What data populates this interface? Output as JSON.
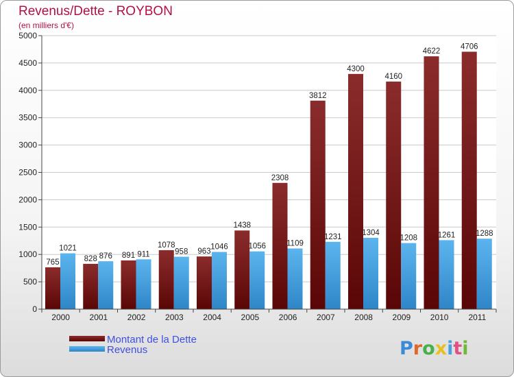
{
  "chart_data": {
    "type": "bar",
    "title": "Revenus/Dette - ROYBON",
    "subtitle": "(en milliers d'€)",
    "categories": [
      "2000",
      "2001",
      "2002",
      "2003",
      "2004",
      "2005",
      "2006",
      "2007",
      "2008",
      "2009",
      "2010",
      "2011"
    ],
    "series": [
      {
        "name": "Montant de la Dette",
        "color": "#7a1818",
        "values": [
          765,
          828,
          891,
          1078,
          963,
          1438,
          2308,
          3812,
          4300,
          4160,
          4622,
          4706
        ]
      },
      {
        "name": "Revenus",
        "color": "#4aa6e6",
        "values": [
          1021,
          876,
          911,
          958,
          1046,
          1056,
          1109,
          1231,
          1304,
          1208,
          1261,
          1288
        ]
      }
    ],
    "ylim": [
      0,
      5000
    ],
    "yticks": [
      0,
      500,
      1000,
      1500,
      2000,
      2500,
      3000,
      3500,
      4000,
      4500,
      5000
    ],
    "grid": true,
    "legend_position": "bottom-left"
  },
  "brand": {
    "letters": [
      "P",
      "r",
      "o",
      "x",
      "i",
      "t",
      "i"
    ],
    "colors": [
      "#3a8ad8",
      "#e0672a",
      "#48b048",
      "#e8c020",
      "#48a0e0",
      "#e05080",
      "#70b838"
    ]
  }
}
